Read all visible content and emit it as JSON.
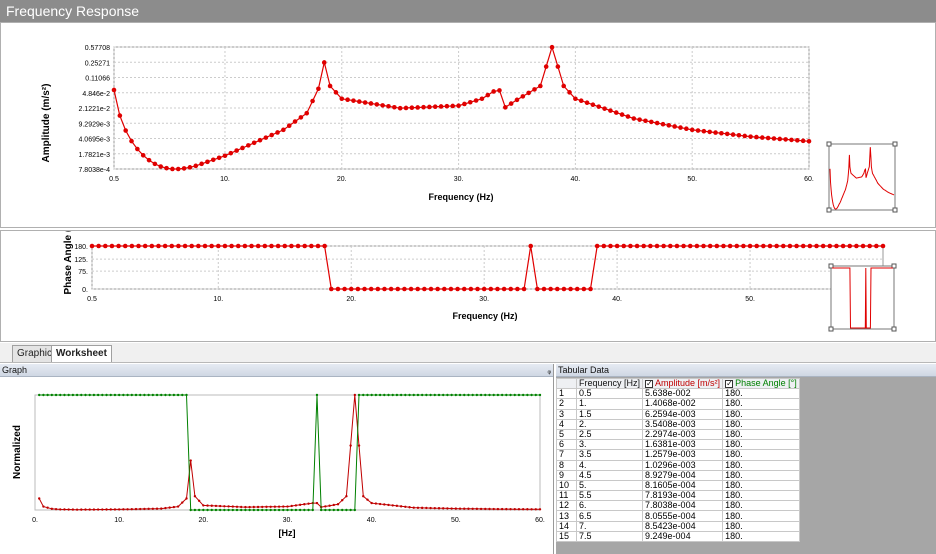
{
  "window": {
    "title": "Frequency Response"
  },
  "amplitude_chart": {
    "ylabel": "Amplitude (m/s²)",
    "xlabel": "Frequency (Hz)",
    "yticks": [
      "0.57708",
      "0.25271",
      "0.11066",
      "4.846e-2",
      "2.1221e-2",
      "9.2929e-3",
      "4.0695e-3",
      "1.7821e-3",
      "7.8038e-4"
    ],
    "xticks": [
      "0.5",
      "10.",
      "20.",
      "30.",
      "40.",
      "50.",
      "60."
    ]
  },
  "phase_chart": {
    "ylabel": "Phase Angle (°)",
    "xlabel": "Frequency (Hz)",
    "yticks": [
      "180.",
      "125.",
      "75.",
      "0."
    ],
    "xticks": [
      "0.5",
      "10.",
      "20.",
      "30.",
      "40.",
      "50."
    ]
  },
  "tabs": {
    "graphics": "Graphics",
    "worksheet": "Worksheet"
  },
  "graph_pane": {
    "title": "Graph",
    "pin": "ᵩ",
    "ylabel": "Normalized",
    "xlabel": "[Hz]",
    "xticks": [
      "0.",
      "10.",
      "20.",
      "30.",
      "40.",
      "50.",
      "60."
    ]
  },
  "tabular": {
    "title": "Tabular Data",
    "columns": {
      "frequency": "Frequency [Hz]",
      "amplitude": "Amplitude [m/s²]",
      "phase": "Phase Angle [°]"
    },
    "rows": [
      [
        "1",
        "0.5",
        "5.638e-002",
        "180."
      ],
      [
        "2",
        "1.",
        "1.4068e-002",
        "180."
      ],
      [
        "3",
        "1.5",
        "6.2594e-003",
        "180."
      ],
      [
        "4",
        "2.",
        "3.5408e-003",
        "180."
      ],
      [
        "5",
        "2.5",
        "2.2974e-003",
        "180."
      ],
      [
        "6",
        "3.",
        "1.6381e-003",
        "180."
      ],
      [
        "7",
        "3.5",
        "1.2579e-003",
        "180."
      ],
      [
        "8",
        "4.",
        "1.0296e-003",
        "180."
      ],
      [
        "9",
        "4.5",
        "8.9279e-004",
        "180."
      ],
      [
        "10",
        "5.",
        "8.1605e-004",
        "180."
      ],
      [
        "11",
        "5.5",
        "7.8193e-004",
        "180."
      ],
      [
        "12",
        "6.",
        "7.8038e-004",
        "180."
      ],
      [
        "13",
        "6.5",
        "8.0555e-004",
        "180."
      ],
      [
        "14",
        "7.",
        "8.5423e-004",
        "180."
      ],
      [
        "15",
        "7.5",
        "9.249e-004",
        "180."
      ]
    ]
  },
  "chart_data": [
    {
      "type": "line",
      "title": "",
      "xlabel": "Frequency (Hz)",
      "ylabel": "Amplitude (m/s²)",
      "yscale": "log",
      "xlim": [
        0.5,
        60
      ],
      "ylim": [
        0.00078038,
        0.57708
      ],
      "grid": true,
      "color": "#e00000",
      "x": [
        0.5,
        1,
        1.5,
        2,
        2.5,
        3,
        3.5,
        4,
        4.5,
        5,
        5.5,
        6,
        6.5,
        7,
        7.5,
        10,
        15,
        17,
        18,
        18.5,
        19,
        20,
        25,
        30,
        32,
        33,
        33.5,
        34,
        35,
        37,
        38,
        39,
        40,
        45,
        50,
        55,
        60
      ],
      "y": [
        0.05638,
        0.014068,
        0.0062594,
        0.0035408,
        0.0022974,
        0.0016381,
        0.0012579,
        0.0010296,
        0.00089279,
        0.00081605,
        0.00078193,
        0.00078038,
        0.00080555,
        0.00085423,
        0.0009249,
        0.0016,
        0.0065,
        0.016,
        0.06,
        0.25,
        0.07,
        0.035,
        0.021,
        0.024,
        0.035,
        0.052,
        0.055,
        0.022,
        0.033,
        0.07,
        0.57,
        0.07,
        0.035,
        0.012,
        0.0065,
        0.0045,
        0.0035
      ]
    },
    {
      "type": "line",
      "title": "",
      "xlabel": "Frequency (Hz)",
      "ylabel": "Phase Angle (°)",
      "xlim": [
        0.5,
        60
      ],
      "ylim": [
        0,
        180
      ],
      "grid": true,
      "color": "#e00000",
      "x": [
        0.5,
        18,
        18.5,
        33,
        33.5,
        34,
        38,
        38.5,
        60
      ],
      "y": [
        180,
        180,
        0,
        0,
        180,
        0,
        0,
        180,
        180
      ]
    },
    {
      "type": "line",
      "title": "",
      "xlabel": "[Hz]",
      "ylabel": "Normalized",
      "xlim": [
        0,
        60
      ],
      "ylim": [
        0,
        1
      ],
      "series": [
        {
          "color": "#c00000",
          "x": [
            0.5,
            1,
            2,
            3,
            5,
            10,
            15,
            17,
            18,
            18.5,
            19,
            20,
            25,
            30,
            33,
            33.5,
            34,
            36,
            37,
            38,
            39,
            40,
            45,
            50,
            55,
            60
          ],
          "y": [
            0.1,
            0.03,
            0.01,
            0.005,
            0.003,
            0.005,
            0.012,
            0.03,
            0.1,
            0.43,
            0.12,
            0.04,
            0.025,
            0.03,
            0.06,
            0.06,
            0.025,
            0.05,
            0.12,
            1.0,
            0.12,
            0.06,
            0.02,
            0.012,
            0.008,
            0.006
          ]
        },
        {
          "color": "#008000",
          "x": [
            0.5,
            18,
            18.5,
            33,
            33.5,
            34,
            38,
            38.5,
            60
          ],
          "y": [
            1,
            1,
            0,
            0,
            1,
            0,
            0,
            1,
            1
          ]
        }
      ]
    }
  ]
}
